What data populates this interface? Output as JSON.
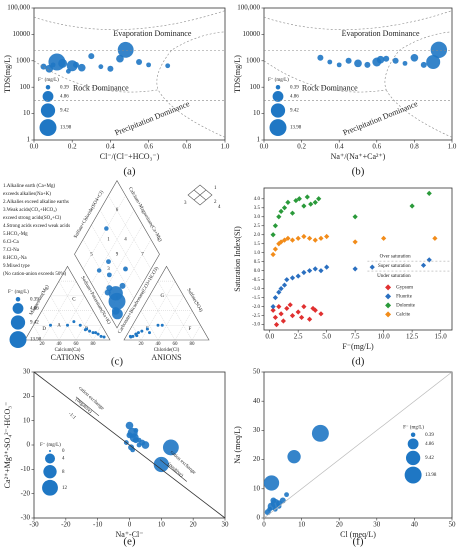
{
  "chart_data": [
    {
      "type": "scatter",
      "panel_label": "(a)",
      "x_label": "Cl⁻/(Cl⁻+HCO₃⁻)",
      "y_label": "TDS(mg/L)",
      "log_y": true,
      "xlim": [
        0,
        1
      ],
      "xticks": [
        {
          "value": 0,
          "label": "0.0"
        },
        0.2,
        0.4,
        0.6,
        0.8,
        {
          "value": 1,
          "label": "1.0"
        }
      ],
      "ylim": [
        1,
        100000
      ],
      "yticks": [
        1,
        10,
        100,
        1000,
        10000,
        {
          "value": 100000,
          "label": "100,000"
        }
      ],
      "annotations": [
        "Evaporation Dominance",
        "Rock Dominance",
        "Precipitation Dominance"
      ],
      "color": "#1f77c4",
      "x": [
        0.05,
        0.08,
        0.1,
        0.12,
        0.15,
        0.18,
        0.2,
        0.22,
        0.25,
        0.3,
        0.35,
        0.4,
        0.45,
        0.48,
        0.55,
        0.6,
        0.7
      ],
      "values": [
        600,
        500,
        700,
        900,
        800,
        400,
        650,
        700,
        550,
        1500,
        600,
        500,
        1200,
        2600,
        900,
        700,
        650
      ],
      "sizes": [
        1,
        2,
        0.5,
        13.98,
        3,
        0.5,
        5,
        1,
        2,
        1,
        0.5,
        1,
        2,
        12,
        1,
        0.5,
        0.5
      ],
      "size_legend": {
        "title": "F⁻ (mg/L)",
        "values": [
          0.39,
          4.86,
          9.42,
          13.98
        ]
      }
    },
    {
      "type": "scatter",
      "panel_label": "(b)",
      "x_label": "Na⁺/(Na⁺+Ca²⁺)",
      "y_label": "TDS(mg/L)",
      "log_y": true,
      "xlim": [
        0,
        1
      ],
      "xticks": [
        {
          "value": 0,
          "label": "0.0"
        },
        0.2,
        0.4,
        0.6,
        0.8,
        {
          "value": 1,
          "label": "1.0"
        }
      ],
      "ylim": [
        1,
        100000
      ],
      "yticks": [
        1,
        10,
        100,
        1000,
        10000,
        {
          "value": 100000,
          "label": "100,000"
        }
      ],
      "annotations": [
        "Evaporation Dominance",
        "Rock Dominance",
        "Precipitation Dominance"
      ],
      "color": "#1f77c4",
      "x": [
        0.3,
        0.35,
        0.4,
        0.45,
        0.5,
        0.55,
        0.6,
        0.62,
        0.65,
        0.7,
        0.75,
        0.8,
        0.85,
        0.9,
        0.93
      ],
      "values": [
        1300,
        900,
        700,
        1000,
        800,
        700,
        900,
        1100,
        1200,
        1000,
        800,
        1300,
        700,
        900,
        2600
      ],
      "sizes": [
        1,
        0.5,
        0.5,
        1,
        2,
        1,
        3,
        2,
        1,
        1,
        0.5,
        2,
        1,
        9,
        13
      ],
      "size_legend": {
        "title": "F⁻ (mg/L)",
        "values": [
          0.39,
          4.86,
          9.42,
          13.98
        ]
      }
    },
    {
      "type": "piper",
      "panel_label": "(c)",
      "legend_lines": [
        "1.Alkaline earth (Ca+Mg)",
        "exceeds alkalies(Na+K)",
        "2.Alkalies exceed alkaline earths",
        "3.Weak acids(CO₃+HCO₃)",
        "exceed strong acids(SO₄+Cl)",
        "4.Strong acids exceed weak acids",
        "5.HCO₃-Mg",
        "6.Cl-Ca",
        "7.Cl-Na",
        "8.HCO₃-Na",
        "9.Mixed type",
        "(No cation-anion exceeds 50%)"
      ],
      "cation_label": "CATIONS",
      "anion_label": "ANIONS",
      "axis_titles": {
        "mg": "Magnesium(Mg)",
        "ca": "Calcium(Ca)",
        "na": "Sodium+Potassium(Na+K)",
        "cl": "Chloride(Cl)",
        "hco3": "Carbonate+Bicarbonate(CO3+HCO3)",
        "so4": "Sulfate(SO4)",
        "so4cl": "Sulfate+Chloride(SO4+Cl)",
        "camg": "Calcium+Magnesium(Ca+Mg)"
      },
      "cation_regions": [
        "A",
        "B",
        "C",
        "D"
      ],
      "anion_regions": [
        "E",
        "F",
        "G"
      ],
      "diamond_regions": [
        "1",
        "2",
        "3",
        "4",
        "5",
        "6",
        "7",
        "8",
        "9"
      ],
      "key_labels": [
        "1",
        "2",
        "3",
        "4"
      ],
      "ticks": [
        20,
        40,
        60,
        80
      ],
      "color": "#1f77c4",
      "samples": {
        "ca": [
          10,
          15,
          20,
          25,
          8,
          30,
          12,
          40,
          5,
          18,
          22,
          60
        ],
        "mg": [
          8,
          10,
          15,
          20,
          5,
          25,
          10,
          20,
          4,
          12,
          14,
          20
        ],
        "cl": [
          10,
          12,
          8,
          15,
          5,
          20,
          25,
          10,
          6,
          30,
          12,
          35
        ],
        "so4": [
          8,
          10,
          5,
          12,
          5,
          15,
          10,
          8,
          4,
          20,
          6,
          20
        ],
        "f": [
          13.98,
          9.42,
          1,
          0.5,
          2,
          0.5,
          1,
          0.4,
          4.86,
          0.5,
          1,
          0.4
        ]
      },
      "size_legend": {
        "title": "F⁻ (mg/L)",
        "values": [
          0.39,
          4.86,
          9.42,
          13.98
        ]
      }
    },
    {
      "type": "scatter",
      "panel_label": "(d)",
      "x_label": "F⁻(mg/L)",
      "y_label": "Saturation Index(SI)",
      "xlim": [
        -0.5,
        16
      ],
      "xticks": [
        {
          "value": 0,
          "label": "0.0"
        },
        2.5,
        {
          "value": 5,
          "label": "5.0"
        },
        7.5,
        {
          "value": 10,
          "label": "10.0"
        },
        12.5,
        {
          "value": 15,
          "label": "15.0"
        }
      ],
      "ylim": [
        -3.3,
        4.6
      ],
      "yticks": [
        {
          "value": -3,
          "label": "-3.0"
        },
        -2.5,
        {
          "value": -2,
          "label": "-2.0"
        },
        -1.5,
        {
          "value": -1,
          "label": "-1.0"
        },
        -0.5,
        {
          "value": 0,
          "label": "0.0"
        },
        0.5,
        {
          "value": 1,
          "label": "1.0"
        },
        1.5,
        {
          "value": 2,
          "label": "2.0"
        },
        2.5,
        {
          "value": 3,
          "label": "3.0"
        },
        3.5,
        {
          "value": 4,
          "label": "4.0"
        }
      ],
      "annotations": [
        "Over saturation",
        "Super saturation",
        "Under saturation"
      ],
      "series": [
        {
          "name": "Gypsum",
          "color": "#e03030",
          "x": [
            0.3,
            0.5,
            0.8,
            1.0,
            1.2,
            1.5,
            2.0,
            2.5,
            3.0,
            3.5,
            4.0,
            4.5,
            0.6,
            1.8,
            2.8,
            3.8
          ],
          "values": [
            -2.2,
            -2.6,
            -2.0,
            -2.4,
            -2.8,
            -2.1,
            -2.5,
            -2.3,
            -2.0,
            -2.7,
            -2.2,
            -2.4,
            -3.0,
            -1.9,
            -2.6,
            -2.1
          ]
        },
        {
          "name": "Fluorite",
          "color": "#2a6fc0",
          "x": [
            0.3,
            0.5,
            0.8,
            1.0,
            1.3,
            1.5,
            2.0,
            2.5,
            3.0,
            3.5,
            4.0,
            4.5,
            5.0,
            7.5,
            9.0,
            13.5,
            14.0
          ],
          "values": [
            -2.0,
            -1.5,
            -1.2,
            -1.0,
            -0.8,
            -0.5,
            -0.4,
            -0.3,
            -0.1,
            0.0,
            0.1,
            0.0,
            0.2,
            0.1,
            0.2,
            0.3,
            0.6
          ]
        },
        {
          "name": "Dolomite",
          "color": "#2a9a3a",
          "x": [
            0.5,
            0.8,
            1.0,
            1.3,
            1.6,
            2.0,
            2.3,
            2.6,
            3.0,
            3.3,
            3.6,
            4.0,
            4.3,
            0.3,
            7.5,
            12.5,
            14.0
          ],
          "values": [
            2.5,
            3.0,
            3.3,
            3.5,
            3.8,
            3.2,
            3.9,
            4.0,
            3.6,
            4.1,
            3.7,
            3.8,
            4.0,
            2.0,
            3.0,
            3.6,
            4.3
          ]
        },
        {
          "name": "Calcite",
          "color": "#f28c1a",
          "x": [
            0.3,
            0.5,
            0.8,
            1.0,
            1.3,
            1.6,
            2.0,
            2.5,
            3.0,
            3.5,
            4.0,
            4.5,
            5.0,
            7.5,
            10.0,
            14.5
          ],
          "values": [
            0.9,
            1.2,
            1.5,
            1.6,
            1.7,
            1.8,
            1.7,
            1.8,
            1.9,
            1.8,
            1.7,
            1.8,
            1.9,
            1.6,
            1.8,
            1.8
          ]
        }
      ]
    },
    {
      "type": "scatter",
      "panel_label": "(e)",
      "x_label": "Na⁺-Cl⁻",
      "y_label": "Ca²⁺+Mg²⁺-SO₄²⁻-HCO₃⁻",
      "xlim": [
        -30,
        30
      ],
      "xticks": [
        -30,
        -20,
        -10,
        0,
        10,
        20,
        30
      ],
      "ylim": [
        -30,
        30
      ],
      "yticks": [
        -30,
        -20,
        -10,
        0,
        10,
        20,
        30
      ],
      "annotations": [
        "cation exchange",
        "(negative)",
        "cation exchange",
        "(positive)",
        "-1:1"
      ],
      "color": "#1f77c4",
      "x": [
        0,
        1,
        2,
        3,
        -1,
        0.5,
        1.5,
        4,
        5,
        13,
        10,
        2,
        3,
        0,
        1
      ],
      "values": [
        8,
        5,
        2,
        0,
        1,
        -1,
        3,
        1,
        0,
        -1,
        -8,
        6,
        2,
        4,
        -2
      ],
      "sizes": [
        2,
        4,
        1,
        0.5,
        0.5,
        1,
        3,
        1,
        2,
        12,
        11,
        0.5,
        0.5,
        1,
        0.5
      ],
      "size_legend": {
        "title": "F⁻ (mg/L)",
        "values": [
          0,
          4,
          8,
          12
        ]
      }
    },
    {
      "type": "scatter",
      "panel_label": "(f)",
      "x_label": "Cl (meq/L)",
      "y_label": "Na (meq/L)",
      "xlim": [
        0,
        50
      ],
      "xticks": [
        0,
        10,
        20,
        30,
        40,
        50
      ],
      "ylim": [
        0,
        50
      ],
      "yticks": [
        0,
        10,
        20,
        30,
        40,
        50
      ],
      "color": "#1f77c4",
      "x": [
        1,
        1.5,
        2,
        2.5,
        3,
        4,
        5,
        6,
        2,
        8,
        15,
        3,
        4
      ],
      "values": [
        2,
        3,
        4,
        6,
        5,
        4,
        6,
        8,
        12,
        21,
        29,
        3,
        5
      ],
      "sizes": [
        1,
        0.5,
        2,
        1,
        3,
        0.5,
        1,
        0.5,
        11,
        8,
        13.98,
        0.5,
        1
      ],
      "size_legend": {
        "title": "F⁻ (mg/L)",
        "values": [
          0.39,
          4.86,
          9.42,
          13.98
        ]
      }
    }
  ]
}
